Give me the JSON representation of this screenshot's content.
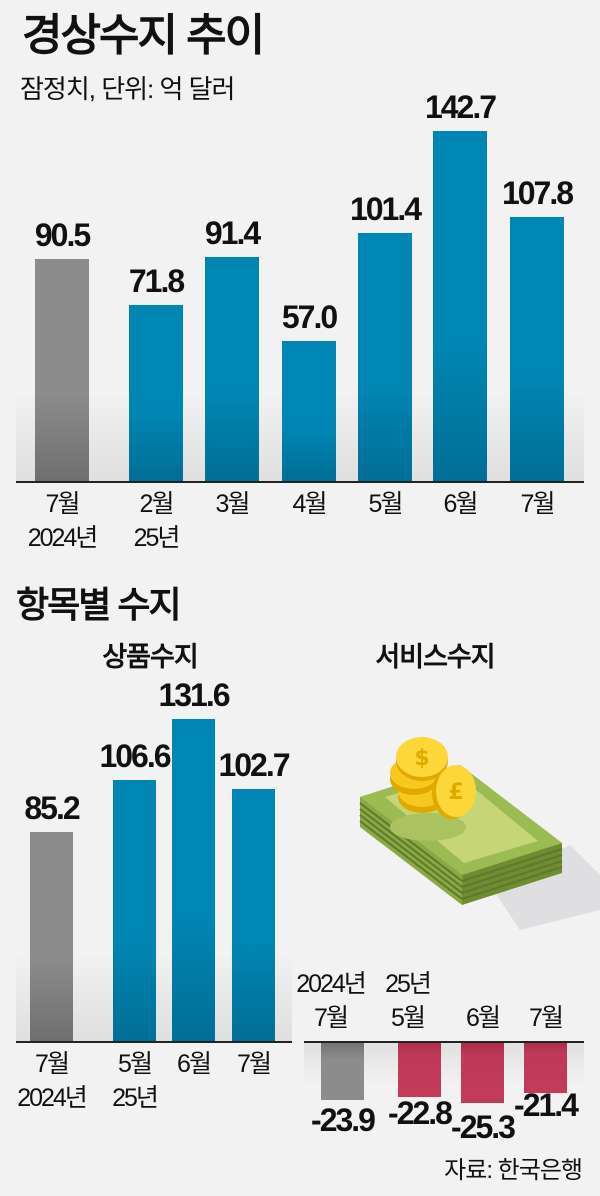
{
  "header": {
    "title": "경상수지 추이",
    "subtitle": "잠정치, 단위: 억 달러"
  },
  "section2": {
    "title": "항목별 수지",
    "goods_title": "상품수지",
    "services_title": "서비스수지"
  },
  "source": "자료: 한국은행",
  "icons": {
    "illustration": "money-stack-coins-icon"
  },
  "colors": {
    "current": "#0086b3",
    "previous": "#8c8c8c",
    "negative": "#c23c5a",
    "background": "#f2f2f2"
  },
  "chart_data": [
    {
      "type": "bar",
      "title": "경상수지 추이",
      "subtitle": "잠정치, 단위: 억 달러",
      "categories": [
        "2024년 7월",
        "25년 2월",
        "3월",
        "4월",
        "5월",
        "6월",
        "7월"
      ],
      "tick_labels": [
        [
          "7월",
          "2024년"
        ],
        [
          "2월",
          "25년"
        ],
        [
          "3월"
        ],
        [
          "4월"
        ],
        [
          "5월"
        ],
        [
          "6월"
        ],
        [
          "7월"
        ]
      ],
      "values": [
        90.5,
        71.8,
        91.4,
        57.0,
        101.4,
        142.7,
        107.8
      ],
      "labels": [
        "90.5",
        "71.8",
        "91.4",
        "57.0",
        "101.4",
        "142.7",
        "107.8"
      ],
      "colors": [
        "#8c8c8c",
        "#0086b3",
        "#0086b3",
        "#0086b3",
        "#0086b3",
        "#0086b3",
        "#0086b3"
      ],
      "xlabel": "",
      "ylabel": "억 달러",
      "grid": false
    },
    {
      "type": "bar",
      "title": "상품수지",
      "categories": [
        "2024년 7월",
        "25년 5월",
        "6월",
        "7월"
      ],
      "tick_labels": [
        [
          "7월",
          "2024년"
        ],
        [
          "5월",
          "25년"
        ],
        [
          "6월"
        ],
        [
          "7월"
        ]
      ],
      "values": [
        85.2,
        106.6,
        131.6,
        102.7
      ],
      "labels": [
        "85.2",
        "106.6",
        "131.6",
        "102.7"
      ],
      "colors": [
        "#8c8c8c",
        "#0086b3",
        "#0086b3",
        "#0086b3"
      ],
      "xlabel": "",
      "ylabel": "억 달러",
      "grid": false
    },
    {
      "type": "bar",
      "title": "서비스수지",
      "categories": [
        "2024년 7월",
        "25년 5월",
        "6월",
        "7월"
      ],
      "tick_labels": [
        [
          "2024년",
          "7월"
        ],
        [
          "25년",
          "5월"
        ],
        [
          "6월"
        ],
        [
          "7월"
        ]
      ],
      "values": [
        -23.9,
        -22.8,
        -25.3,
        -21.4
      ],
      "labels": [
        "-23.9",
        "-22.8",
        "-25.3",
        "-21.4"
      ],
      "colors": [
        "#8c8c8c",
        "#c23c5a",
        "#c23c5a",
        "#c23c5a"
      ],
      "xlabel": "",
      "ylabel": "억 달러",
      "grid": false
    }
  ]
}
